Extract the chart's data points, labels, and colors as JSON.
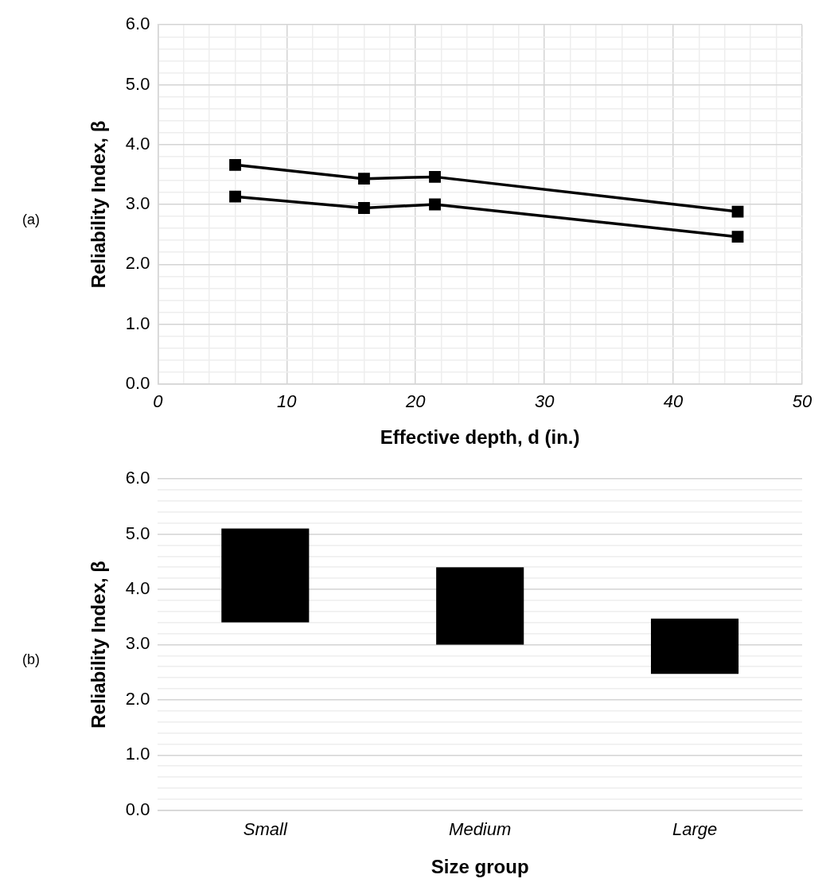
{
  "chart_data": [
    {
      "type": "line",
      "xlabel": "Effective depth, d (in.)",
      "ylabel": "Reliability Index, β",
      "annotations": [
        "(a)"
      ],
      "marker": "square",
      "line_style": "solid",
      "grid": true,
      "legend": false,
      "x": [
        6,
        16,
        21.5,
        45
      ],
      "series": [
        {
          "color": "#000000",
          "values": [
            3.66,
            3.43,
            3.46,
            2.88
          ]
        },
        {
          "color": "#000000",
          "values": [
            3.13,
            2.94,
            3.0,
            2.46
          ]
        }
      ],
      "xlim": [
        0,
        50
      ],
      "xticks": [
        0,
        {
          "value": 2,
          "label": null
        },
        {
          "value": 4,
          "label": null
        },
        {
          "value": 6,
          "label": null
        },
        {
          "value": 8,
          "label": null
        },
        10,
        {
          "value": 12,
          "label": null
        },
        {
          "value": 14,
          "label": null
        },
        {
          "value": 16,
          "label": null
        },
        {
          "value": 18,
          "label": null
        },
        20,
        {
          "value": 22,
          "label": null
        },
        {
          "value": 24,
          "label": null
        },
        {
          "value": 26,
          "label": null
        },
        {
          "value": 28,
          "label": null
        },
        30,
        {
          "value": 32,
          "label": null
        },
        {
          "value": 34,
          "label": null
        },
        {
          "value": 36,
          "label": null
        },
        {
          "value": 38,
          "label": null
        },
        40,
        {
          "value": 42,
          "label": null
        },
        {
          "value": 44,
          "label": null
        },
        {
          "value": 46,
          "label": null
        },
        {
          "value": 48,
          "label": null
        },
        50
      ],
      "ylim": [
        0,
        6
      ],
      "yticks": [
        {
          "value": 0,
          "label": "0.0"
        },
        {
          "value": 0.2,
          "label": null
        },
        {
          "value": 0.4,
          "label": null
        },
        {
          "value": 0.6,
          "label": null
        },
        {
          "value": 0.8,
          "label": null
        },
        {
          "value": 1,
          "label": "1.0"
        },
        {
          "value": 1.2,
          "label": null
        },
        {
          "value": 1.4,
          "label": null
        },
        {
          "value": 1.6,
          "label": null
        },
        {
          "value": 1.8,
          "label": null
        },
        {
          "value": 2,
          "label": "2.0"
        },
        {
          "value": 2.2,
          "label": null
        },
        {
          "value": 2.4,
          "label": null
        },
        {
          "value": 2.6,
          "label": null
        },
        {
          "value": 2.8,
          "label": null
        },
        {
          "value": 3,
          "label": "3.0"
        },
        {
          "value": 3.2,
          "label": null
        },
        {
          "value": 3.4,
          "label": null
        },
        {
          "value": 3.6,
          "label": null
        },
        {
          "value": 3.8,
          "label": null
        },
        {
          "value": 4,
          "label": "4.0"
        },
        {
          "value": 4.2,
          "label": null
        },
        {
          "value": 4.4,
          "label": null
        },
        {
          "value": 4.6,
          "label": null
        },
        {
          "value": 4.8,
          "label": null
        },
        {
          "value": 5,
          "label": "5.0"
        },
        {
          "value": 5.2,
          "label": null
        },
        {
          "value": 5.4,
          "label": null
        },
        {
          "value": 5.6,
          "label": null
        },
        {
          "value": 5.8,
          "label": null
        },
        {
          "value": 6,
          "label": "6.0"
        }
      ]
    },
    {
      "type": "bar",
      "xlabel": "Size group",
      "ylabel": "Reliability Index, β",
      "annotations": [
        "(b)"
      ],
      "grid": "y",
      "legend": false,
      "categories": [
        "Small",
        "Medium",
        "Large"
      ],
      "values": [
        1.7,
        1.4,
        1.0
      ],
      "base": [
        3.4,
        3.0,
        2.47
      ],
      "color": "#000000",
      "ylim": [
        0,
        6
      ],
      "yticks": [
        {
          "value": 0,
          "label": "0.0"
        },
        {
          "value": 0.2,
          "label": null
        },
        {
          "value": 0.4,
          "label": null
        },
        {
          "value": 0.6,
          "label": null
        },
        {
          "value": 0.8,
          "label": null
        },
        {
          "value": 1,
          "label": "1.0"
        },
        {
          "value": 1.2,
          "label": null
        },
        {
          "value": 1.4,
          "label": null
        },
        {
          "value": 1.6,
          "label": null
        },
        {
          "value": 1.8,
          "label": null
        },
        {
          "value": 2,
          "label": "2.0"
        },
        {
          "value": 2.2,
          "label": null
        },
        {
          "value": 2.4,
          "label": null
        },
        {
          "value": 2.6,
          "label": null
        },
        {
          "value": 2.8,
          "label": null
        },
        {
          "value": 3,
          "label": "3.0"
        },
        {
          "value": 3.2,
          "label": null
        },
        {
          "value": 3.4,
          "label": null
        },
        {
          "value": 3.6,
          "label": null
        },
        {
          "value": 3.8,
          "label": null
        },
        {
          "value": 4,
          "label": "4.0"
        },
        {
          "value": 4.2,
          "label": null
        },
        {
          "value": 4.4,
          "label": null
        },
        {
          "value": 4.6,
          "label": null
        },
        {
          "value": 4.8,
          "label": null
        },
        {
          "value": 5,
          "label": "5.0"
        },
        {
          "value": 5.2,
          "label": null
        },
        {
          "value": 5.4,
          "label": null
        },
        {
          "value": 5.6,
          "label": null
        },
        {
          "value": 5.8,
          "label": null
        },
        {
          "value": 6,
          "label": "6.0"
        }
      ]
    }
  ]
}
